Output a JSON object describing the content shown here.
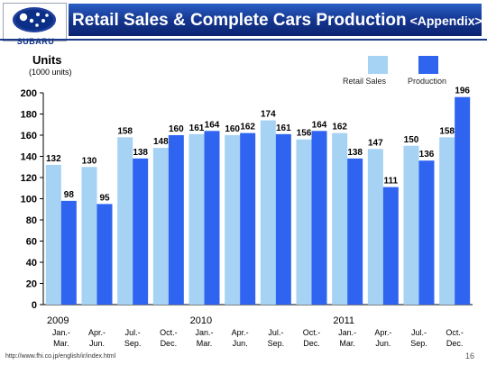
{
  "logo": {
    "text": "SUBARU",
    "emblem": "subaru-pleiades-emblem"
  },
  "title": {
    "main": "Retail Sales & Complete Cars Production",
    "sub": "<Appendix>"
  },
  "units": {
    "label": "Units",
    "sub": "(1000 units)"
  },
  "footer": {
    "url": "http://www.fhi.co.jp/english/ir/index.html",
    "page": "16"
  },
  "colors": {
    "retail": "#a6d2f4",
    "production": "#2e64f0",
    "title_bar": "#13338c"
  },
  "chart_data": {
    "type": "bar",
    "categories": [
      "Jan.-Mar.",
      "Apr.-Jun.",
      "Jul.-Sep.",
      "Oct.-Dec.",
      "Jan.-Mar.",
      "Apr.-Jun.",
      "Jul.-Sep.",
      "Oct.-Dec.",
      "Jan.-Mar.",
      "Apr.-Jun.",
      "Jul.-Sep.",
      "Oct.-Dec."
    ],
    "category_lines": [
      [
        "Jan.-",
        "Mar."
      ],
      [
        "Apr.-",
        "Jun."
      ],
      [
        "Jul.-",
        "Sep."
      ],
      [
        "Oct.-",
        "Dec."
      ],
      [
        "Jan.-",
        "Mar."
      ],
      [
        "Apr.-",
        "Jun."
      ],
      [
        "Jul.-",
        "Sep."
      ],
      [
        "Oct.-",
        "Dec."
      ],
      [
        "Jan.-",
        "Mar."
      ],
      [
        "Apr.-",
        "Jun."
      ],
      [
        "Jul.-",
        "Sep."
      ],
      [
        "Oct.-",
        "Dec."
      ]
    ],
    "year_labels": [
      {
        "label": "2009",
        "category_index": 0
      },
      {
        "label": "2010",
        "category_index": 4
      },
      {
        "label": "2011",
        "category_index": 8
      }
    ],
    "series": [
      {
        "name": "Retail Sales",
        "values": [
          132,
          130,
          158,
          148,
          161,
          160,
          174,
          156,
          162,
          147,
          150,
          158
        ]
      },
      {
        "name": "Production",
        "values": [
          98,
          95,
          138,
          160,
          164,
          162,
          161,
          164,
          138,
          111,
          136,
          196
        ]
      }
    ],
    "yticks": [
      0,
      20,
      40,
      60,
      80,
      100,
      120,
      140,
      160,
      180,
      200
    ],
    "ylim": [
      0,
      200
    ],
    "ylabel": "Units",
    "grid": false,
    "legend": "top-right"
  }
}
